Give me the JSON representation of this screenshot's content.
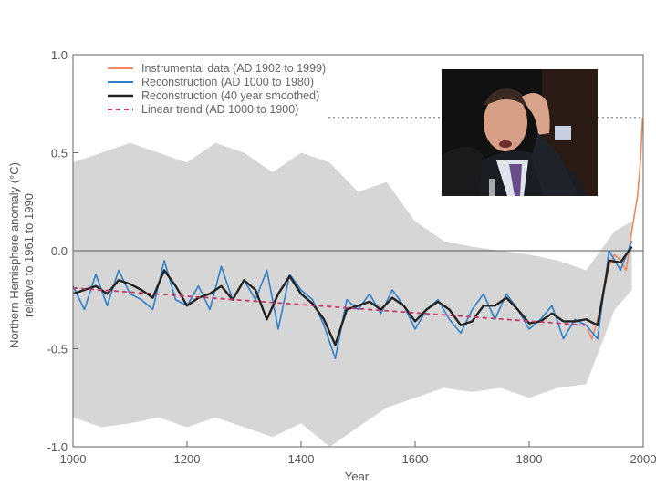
{
  "chart_data": {
    "type": "line",
    "title": "",
    "xlabel": "Year",
    "ylabel": "Northern Hemisphere anomaly (°C)",
    "ylabel2": "relative to 1961 to 1990",
    "xlim": [
      1000,
      2000
    ],
    "ylim": [
      -1.0,
      1.0
    ],
    "x_ticks": [
      1000,
      1200,
      1400,
      1600,
      1800,
      2000
    ],
    "y_ticks": [
      1.0,
      0.5,
      0.0,
      -0.5,
      -1.0
    ],
    "y_tick_labels": [
      "1.0",
      "0.5",
      "0.0",
      "-0.5",
      "-1.0"
    ],
    "grid": false,
    "legend_position": "top-left",
    "reference_line_1998": 0.68,
    "series": [
      {
        "name": "Instrumental data (AD 1902 to 1999)",
        "color": "#f08a5d",
        "x": [
          1902,
          1910,
          1920,
          1930,
          1940,
          1950,
          1960,
          1970,
          1980,
          1990,
          1995,
          1999
        ],
        "values": [
          -0.4,
          -0.45,
          -0.35,
          -0.22,
          -0.08,
          -0.02,
          -0.05,
          -0.1,
          0.1,
          0.28,
          0.45,
          0.68
        ]
      },
      {
        "name": "Reconstruction (AD 1000 to 1980)",
        "color": "#2f7fc7",
        "x": [
          1000,
          1020,
          1040,
          1060,
          1080,
          1100,
          1120,
          1140,
          1160,
          1180,
          1200,
          1220,
          1240,
          1260,
          1280,
          1300,
          1320,
          1340,
          1360,
          1380,
          1400,
          1420,
          1440,
          1460,
          1480,
          1500,
          1520,
          1540,
          1560,
          1580,
          1600,
          1620,
          1640,
          1660,
          1680,
          1700,
          1720,
          1740,
          1760,
          1780,
          1800,
          1820,
          1840,
          1860,
          1880,
          1900,
          1920,
          1940,
          1960,
          1980
        ],
        "values": [
          -0.18,
          -0.3,
          -0.12,
          -0.28,
          -0.1,
          -0.22,
          -0.25,
          -0.3,
          -0.05,
          -0.25,
          -0.28,
          -0.18,
          -0.3,
          -0.08,
          -0.25,
          -0.15,
          -0.25,
          -0.1,
          -0.4,
          -0.12,
          -0.2,
          -0.25,
          -0.38,
          -0.55,
          -0.25,
          -0.3,
          -0.22,
          -0.32,
          -0.2,
          -0.28,
          -0.4,
          -0.3,
          -0.25,
          -0.35,
          -0.42,
          -0.3,
          -0.22,
          -0.35,
          -0.22,
          -0.3,
          -0.4,
          -0.35,
          -0.28,
          -0.45,
          -0.35,
          -0.38,
          -0.45,
          0.0,
          -0.1,
          0.05
        ]
      },
      {
        "name": "Reconstruction (40 year smoothed)",
        "color": "#222222",
        "x": [
          1000,
          1020,
          1040,
          1060,
          1080,
          1100,
          1120,
          1140,
          1160,
          1180,
          1200,
          1220,
          1240,
          1260,
          1280,
          1300,
          1320,
          1340,
          1360,
          1380,
          1400,
          1420,
          1440,
          1460,
          1480,
          1500,
          1520,
          1540,
          1560,
          1580,
          1600,
          1620,
          1640,
          1660,
          1680,
          1700,
          1720,
          1740,
          1760,
          1780,
          1800,
          1820,
          1840,
          1860,
          1880,
          1900,
          1920,
          1940,
          1960,
          1980
        ],
        "values": [
          -0.22,
          -0.2,
          -0.18,
          -0.22,
          -0.15,
          -0.17,
          -0.2,
          -0.24,
          -0.1,
          -0.18,
          -0.28,
          -0.24,
          -0.22,
          -0.18,
          -0.25,
          -0.15,
          -0.2,
          -0.35,
          -0.22,
          -0.13,
          -0.22,
          -0.27,
          -0.35,
          -0.48,
          -0.3,
          -0.28,
          -0.26,
          -0.3,
          -0.24,
          -0.28,
          -0.36,
          -0.3,
          -0.26,
          -0.3,
          -0.38,
          -0.36,
          -0.28,
          -0.28,
          -0.24,
          -0.3,
          -0.37,
          -0.36,
          -0.32,
          -0.36,
          -0.36,
          -0.35,
          -0.38,
          -0.05,
          -0.06,
          0.02
        ]
      },
      {
        "name": "Linear trend (AD 1000 to 1900)",
        "color": "#c63a6a",
        "dashed": true,
        "x": [
          1000,
          1900
        ],
        "values": [
          -0.19,
          -0.38
        ]
      }
    ],
    "uncertainty_band": {
      "x": [
        1000,
        1050,
        1100,
        1150,
        1200,
        1250,
        1300,
        1350,
        1400,
        1450,
        1500,
        1550,
        1600,
        1650,
        1700,
        1750,
        1800,
        1850,
        1900,
        1950,
        1980
      ],
      "upper": [
        0.45,
        0.5,
        0.55,
        0.5,
        0.45,
        0.55,
        0.5,
        0.4,
        0.5,
        0.45,
        0.3,
        0.35,
        0.15,
        0.05,
        0.02,
        0.0,
        -0.02,
        -0.05,
        -0.1,
        0.1,
        0.15
      ],
      "lower": [
        -0.85,
        -0.9,
        -0.88,
        -0.85,
        -0.9,
        -0.85,
        -0.9,
        -0.95,
        -0.88,
        -1.0,
        -0.9,
        -0.8,
        -0.75,
        -0.7,
        -0.72,
        -0.7,
        -0.75,
        -0.7,
        -0.68,
        -0.3,
        -0.2
      ],
      "color": "#d6d6d6"
    }
  },
  "inset_photo": {
    "description_icon": "photo-icon"
  }
}
